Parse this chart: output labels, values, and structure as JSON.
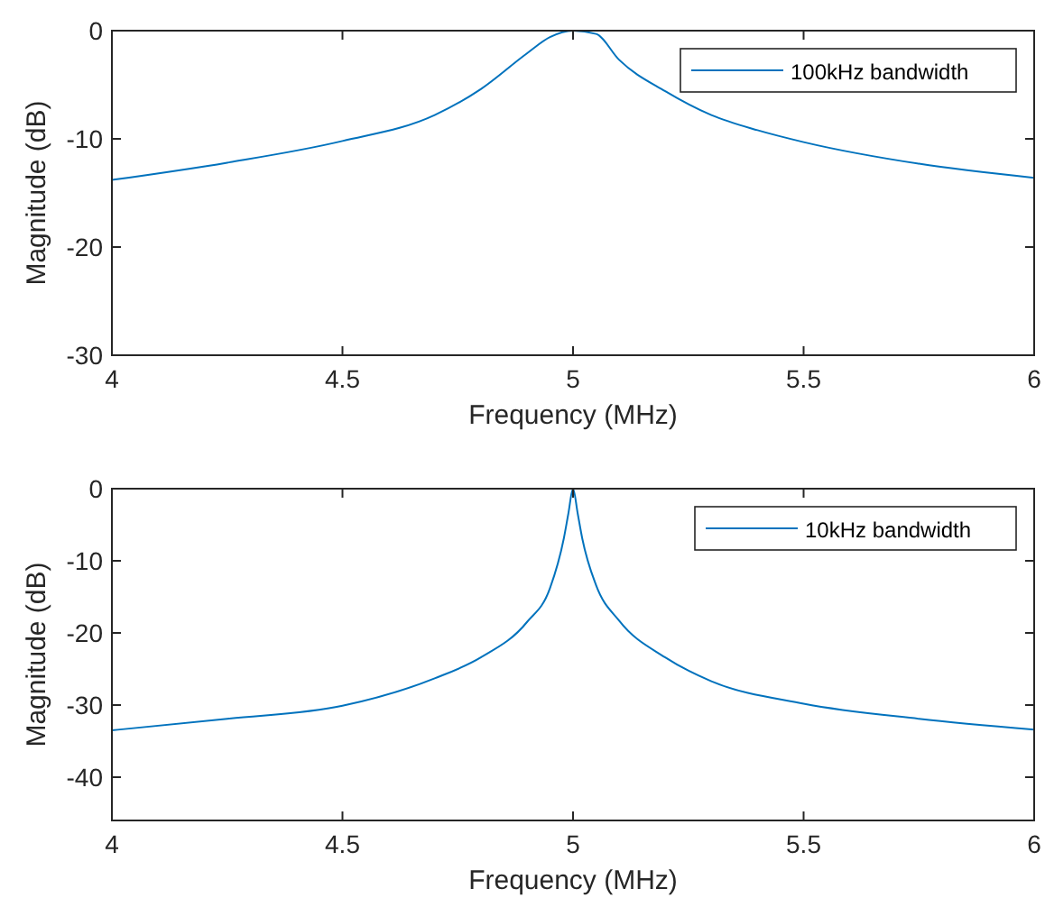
{
  "chart_data": [
    {
      "type": "line",
      "xlabel": "Frequency (MHz)",
      "ylabel": "Magnitude (dB)",
      "xlim": [
        4,
        6
      ],
      "ylim": [
        -30,
        0
      ],
      "xticks": [
        4,
        4.5,
        5,
        5.5,
        6
      ],
      "yticks": [
        -30,
        -20,
        -10,
        0
      ],
      "grid": false,
      "legend": "top right",
      "series": [
        {
          "name": "100kHz bandwidth",
          "color": "#0072bd",
          "x": [
            4,
            4.25,
            4.5,
            4.7,
            4.8,
            4.9,
            4.95,
            5,
            5.05,
            5.1,
            5.2,
            5.3,
            5.4,
            5.5,
            5.75,
            6
          ],
          "values": [
            -13.8,
            -12.2,
            -10.2,
            -7.8,
            -5.4,
            -2.1,
            -0.6,
            0,
            -0.3,
            -2.7,
            -5.6,
            -7.8,
            -9.2,
            -10.3,
            -12.3,
            -13.6
          ]
        }
      ]
    },
    {
      "type": "line",
      "xlabel": "Frequency (MHz)",
      "ylabel": "Magnitude (dB)",
      "xlim": [
        4,
        6
      ],
      "ylim": [
        -46,
        0
      ],
      "xticks": [
        4,
        4.5,
        5,
        5.5,
        6
      ],
      "yticks": [
        -40,
        -30,
        -20,
        -10,
        0
      ],
      "grid": false,
      "legend": "top right",
      "series": [
        {
          "name": "10kHz bandwidth",
          "color": "#0072bd",
          "x": [
            4,
            4.25,
            4.5,
            4.7,
            4.8,
            4.9,
            4.95,
            4.98,
            4.99,
            5,
            5.01,
            5.02,
            5.05,
            5.1,
            5.2,
            5.3,
            5.5,
            5.75,
            6
          ],
          "values": [
            -33.5,
            -31.9,
            -30.1,
            -26.3,
            -23.4,
            -18.5,
            -13.8,
            -6.9,
            -3.4,
            0,
            -3.4,
            -6.9,
            -13.4,
            -18.3,
            -23.4,
            -26.7,
            -29.8,
            -31.9,
            -33.4
          ]
        }
      ]
    }
  ]
}
